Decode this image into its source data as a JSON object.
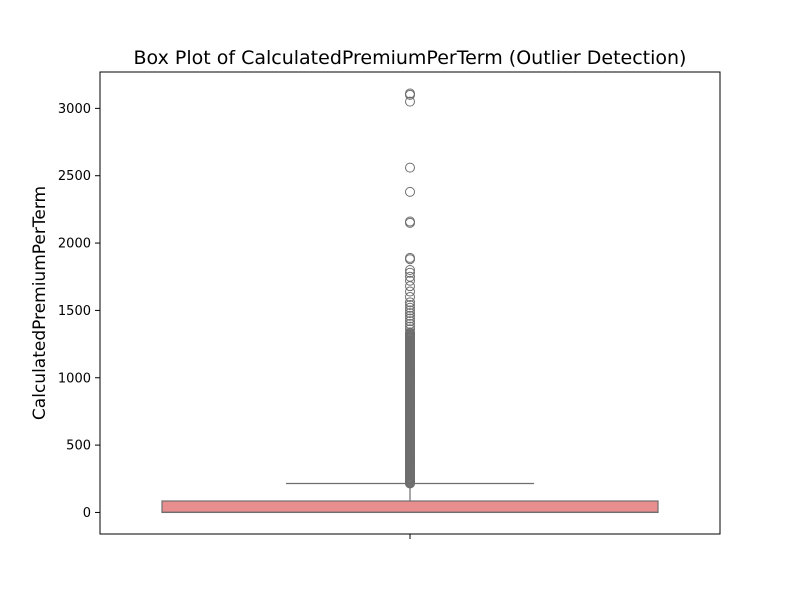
{
  "chart_data": {
    "type": "box",
    "title": "Box Plot of CalculatedPremiumPerTerm (Outlier Detection)",
    "xlabel": "",
    "ylabel": "CalculatedPremiumPerTerm",
    "ylim": [
      -160,
      3270
    ],
    "yticks": [
      0,
      500,
      1000,
      1500,
      2000,
      2500,
      3000
    ],
    "grid": false,
    "box_color": "#e88e8e",
    "line_color": "#6e6e6e",
    "box": {
      "min": 0,
      "q1": 0,
      "median": 2,
      "q3": 85,
      "whisker_low": 0,
      "whisker_high": 215
    },
    "dense_outlier_range": [
      215,
      1340
    ],
    "outliers": [
      1360,
      1380,
      1400,
      1420,
      1440,
      1460,
      1480,
      1500,
      1520,
      1540,
      1560,
      1600,
      1640,
      1680,
      1720,
      1750,
      1780,
      1800,
      1880,
      1890,
      2150,
      2160,
      2380,
      2560,
      3050,
      3100,
      3110
    ]
  }
}
